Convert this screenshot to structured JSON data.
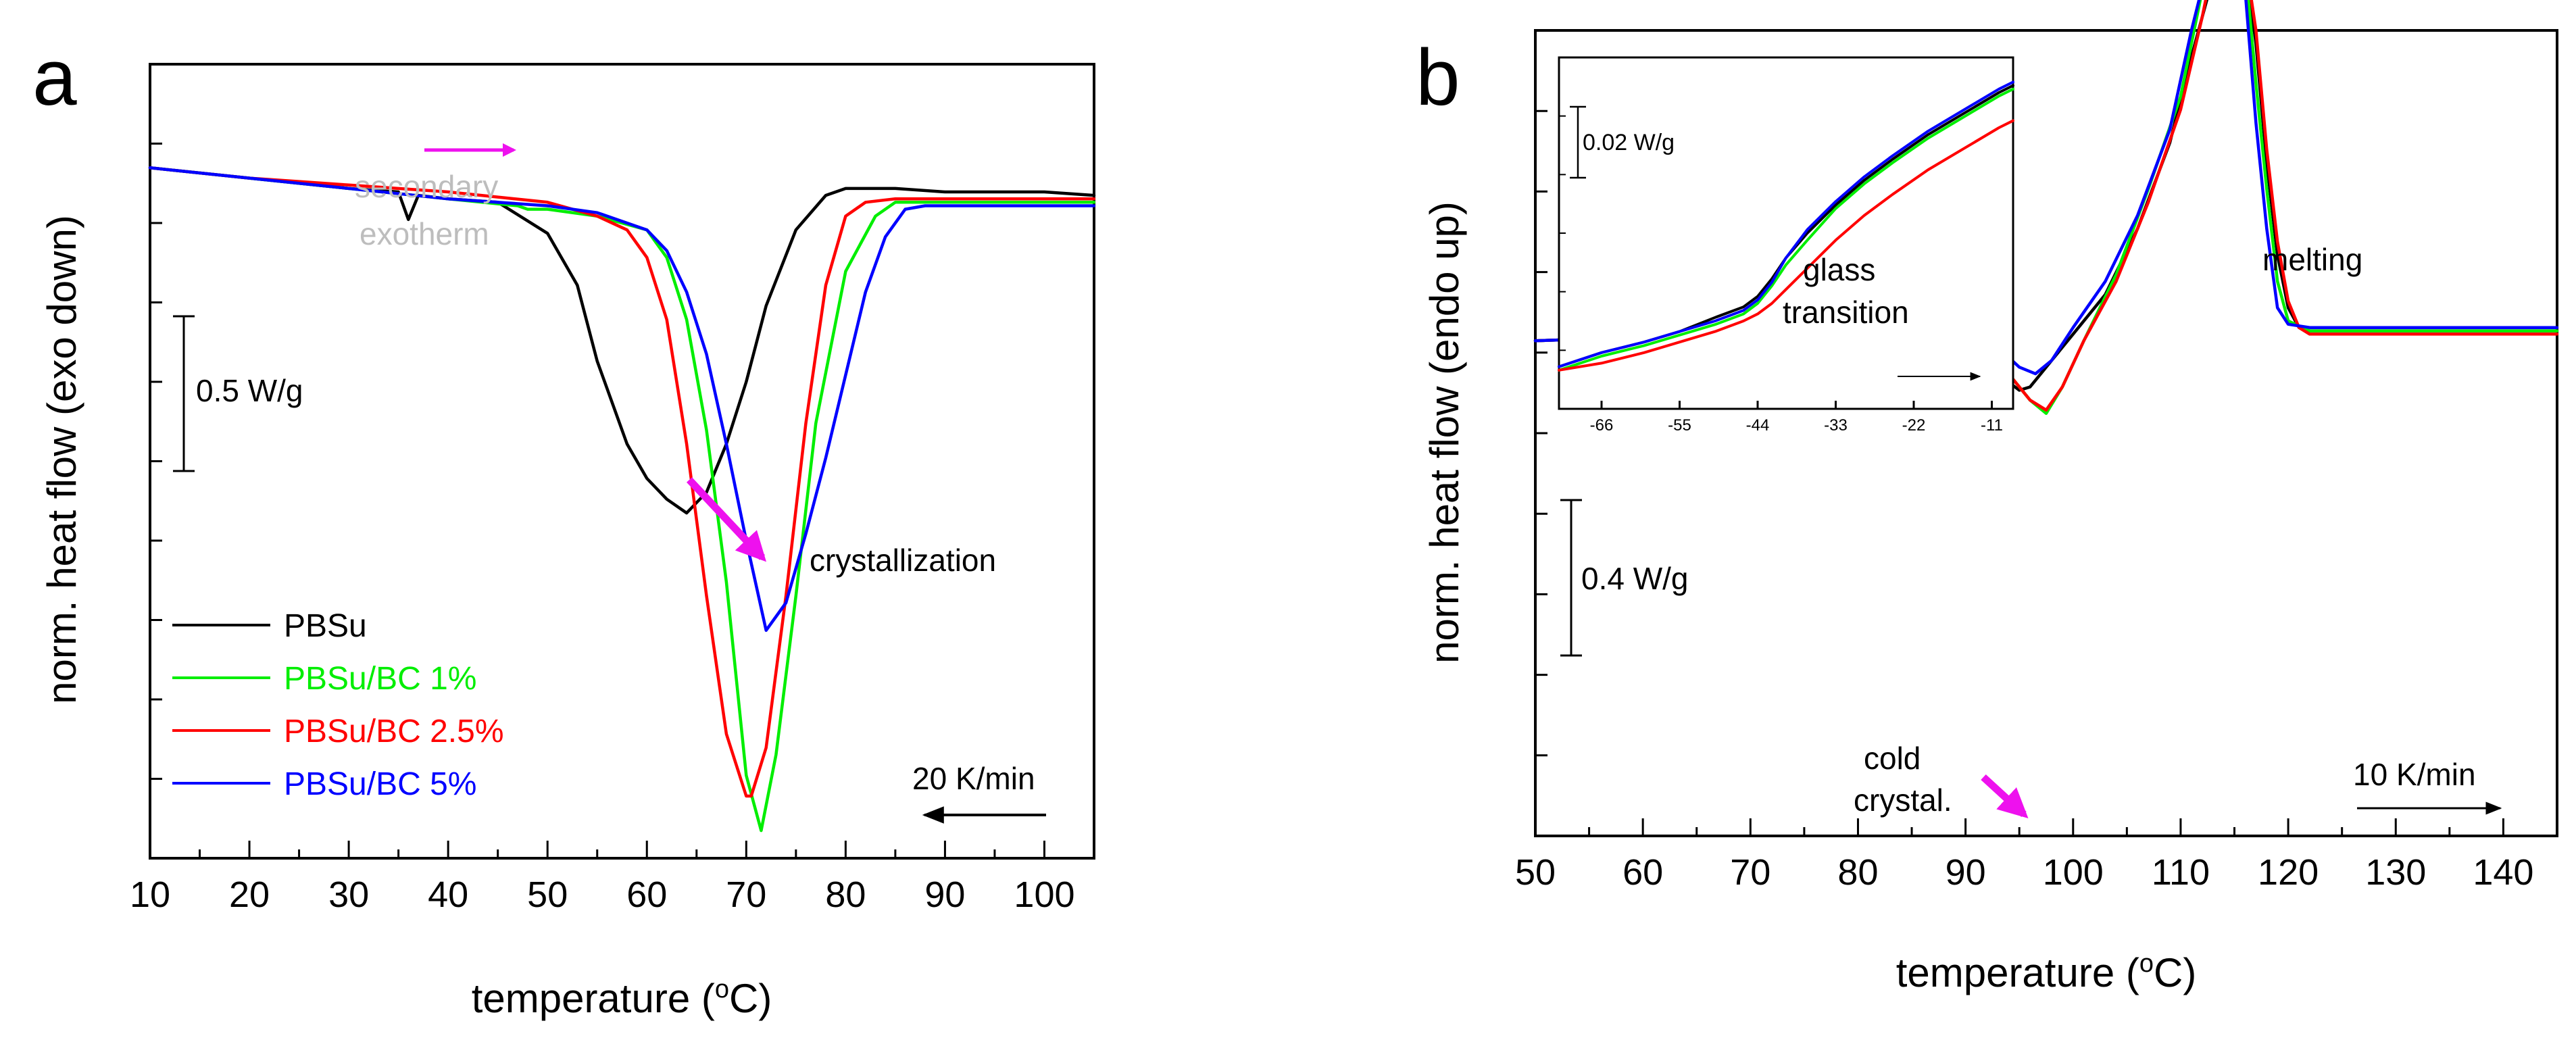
{
  "chart_data": [
    {
      "panel": "a",
      "type": "line",
      "xlabel": "temperature (°C)",
      "ylabel": "norm. heat flow (exo down)",
      "xlim": [
        10,
        105
      ],
      "ylim_relative_W_per_g": [
        -1.0,
        0.15
      ],
      "xticks": [
        10,
        20,
        30,
        40,
        50,
        60,
        70,
        80,
        90,
        100
      ],
      "legend_position": "bottom-left",
      "scale_bar": "0.5 W/g",
      "rate_label": "20 K/min",
      "rate_arrow_direction": "left",
      "annotations": [
        {
          "text": "crystallization",
          "at": [
            75,
            -0.6
          ]
        },
        {
          "text": "secondary",
          "at": [
            42,
            0.02
          ]
        },
        {
          "text": "exotherm",
          "at": [
            42,
            -0.04
          ]
        }
      ],
      "series": [
        {
          "name": "PBSu",
          "color": "#000000",
          "x": [
            10,
            20,
            30,
            35,
            36,
            37,
            40,
            45,
            50,
            53,
            55,
            58,
            60,
            62,
            64,
            66,
            68,
            70,
            72,
            75,
            78,
            80,
            82,
            85,
            90,
            95,
            100,
            105
          ],
          "y": [
            0.0,
            -0.015,
            -0.03,
            -0.035,
            -0.075,
            -0.04,
            -0.045,
            -0.05,
            -0.095,
            -0.17,
            -0.28,
            -0.4,
            -0.45,
            -0.48,
            -0.5,
            -0.47,
            -0.4,
            -0.31,
            -0.2,
            -0.09,
            -0.04,
            -0.03,
            -0.03,
            -0.03,
            -0.035,
            -0.035,
            -0.035,
            -0.04
          ]
        },
        {
          "name": "PBSu/BC 1%",
          "color": "#00ee00",
          "x": [
            10,
            20,
            30,
            40,
            47,
            48,
            50,
            55,
            60,
            62,
            64,
            66,
            68,
            70,
            71.5,
            73,
            75,
            77,
            80,
            83,
            85,
            90,
            95,
            100,
            105
          ],
          "y": [
            0.0,
            -0.015,
            -0.03,
            -0.045,
            -0.055,
            -0.06,
            -0.06,
            -0.07,
            -0.09,
            -0.13,
            -0.22,
            -0.38,
            -0.6,
            -0.88,
            -0.96,
            -0.85,
            -0.62,
            -0.37,
            -0.15,
            -0.07,
            -0.05,
            -0.05,
            -0.05,
            -0.05,
            -0.05
          ]
        },
        {
          "name": "PBSu/BC 2.5%",
          "color": "#ff0000",
          "x": [
            10,
            20,
            30,
            40,
            50,
            55,
            58,
            60,
            62,
            64,
            66,
            68,
            70,
            70.5,
            72,
            74,
            76,
            78,
            80,
            82,
            85,
            90,
            95,
            100,
            105
          ],
          "y": [
            0.0,
            -0.015,
            -0.025,
            -0.035,
            -0.05,
            -0.07,
            -0.09,
            -0.13,
            -0.22,
            -0.4,
            -0.62,
            -0.82,
            -0.91,
            -0.91,
            -0.84,
            -0.62,
            -0.37,
            -0.17,
            -0.07,
            -0.05,
            -0.045,
            -0.045,
            -0.045,
            -0.045,
            -0.045
          ]
        },
        {
          "name": "PBSu/BC 5%",
          "color": "#0000ff",
          "x": [
            10,
            20,
            30,
            40,
            50,
            55,
            60,
            62,
            64,
            66,
            68,
            70,
            72,
            74,
            76,
            78,
            80,
            82,
            84,
            86,
            88,
            90,
            95,
            100,
            105
          ],
          "y": [
            0.0,
            -0.015,
            -0.03,
            -0.045,
            -0.055,
            -0.065,
            -0.09,
            -0.12,
            -0.18,
            -0.27,
            -0.4,
            -0.54,
            -0.67,
            -0.63,
            -0.53,
            -0.42,
            -0.3,
            -0.18,
            -0.1,
            -0.06,
            -0.055,
            -0.055,
            -0.055,
            -0.055,
            -0.055
          ]
        }
      ]
    },
    {
      "panel": "b",
      "type": "line",
      "xlabel": "temperature (°C)",
      "ylabel": "norm. heat flow (endo up)",
      "xlim": [
        50,
        145
      ],
      "ylim_relative_W_per_g": [
        -0.9,
        0.32
      ],
      "xticks": [
        50,
        60,
        70,
        80,
        90,
        100,
        110,
        120,
        130,
        140
      ],
      "scale_bar": "0.4 W/g",
      "rate_label": "10 K/min",
      "rate_arrow_direction": "right",
      "annotations": [
        {
          "text": "melting",
          "at": [
            119,
            0.12
          ]
        },
        {
          "text": "cold",
          "at": [
            91,
            -0.47
          ]
        },
        {
          "text": "crystal.",
          "at": [
            91,
            -0.52
          ]
        }
      ],
      "series": [
        {
          "name": "PBSu",
          "color": "#000000",
          "x": [
            50,
            60,
            70,
            80,
            88,
            91,
            93,
            95,
            96,
            98,
            100,
            103,
            106,
            109,
            111,
            113,
            114,
            115,
            116,
            117,
            118,
            119,
            120,
            121,
            122,
            125,
            130,
            135,
            140,
            145
          ],
          "y": [
            -0.15,
            -0.145,
            -0.14,
            -0.14,
            -0.145,
            -0.17,
            -0.2,
            -0.225,
            -0.22,
            -0.18,
            -0.14,
            -0.08,
            0.02,
            0.15,
            0.28,
            0.4,
            0.44,
            0.46,
            0.42,
            0.3,
            0.12,
            -0.02,
            -0.1,
            -0.13,
            -0.135,
            -0.135,
            -0.135,
            -0.135,
            -0.135,
            -0.135
          ]
        },
        {
          "name": "PBSu/BC 1%",
          "color": "#00ee00",
          "x": [
            50,
            60,
            70,
            80,
            88,
            92,
            94,
            96,
            97.5,
            99,
            101,
            104,
            107,
            110,
            112,
            113,
            114,
            114.5,
            115,
            116,
            117,
            118,
            119,
            120,
            122,
            125,
            130,
            140,
            145
          ],
          "y": [
            -0.15,
            -0.145,
            -0.14,
            -0.135,
            -0.14,
            -0.16,
            -0.2,
            -0.24,
            -0.26,
            -0.22,
            -0.15,
            -0.05,
            0.08,
            0.22,
            0.38,
            0.48,
            0.56,
            0.6,
            0.56,
            0.42,
            0.24,
            0.08,
            -0.06,
            -0.12,
            -0.135,
            -0.135,
            -0.135,
            -0.135,
            -0.135
          ]
        },
        {
          "name": "PBSu/BC 2.5%",
          "color": "#ff0000",
          "x": [
            50,
            60,
            70,
            80,
            88,
            92,
            94,
            96,
            97.5,
            99,
            101,
            104,
            107,
            110,
            112,
            113,
            114,
            115,
            116,
            117,
            118,
            119,
            120,
            121,
            122,
            125,
            130,
            140,
            145
          ],
          "y": [
            -0.15,
            -0.145,
            -0.14,
            -0.135,
            -0.14,
            -0.16,
            -0.2,
            -0.24,
            -0.255,
            -0.22,
            -0.15,
            -0.06,
            0.06,
            0.2,
            0.34,
            0.42,
            0.47,
            0.48,
            0.43,
            0.32,
            0.14,
            0.0,
            -0.09,
            -0.13,
            -0.14,
            -0.14,
            -0.14,
            -0.14,
            -0.14
          ]
        },
        {
          "name": "PBSu/BC 5%",
          "color": "#0000ff",
          "x": [
            50,
            60,
            70,
            80,
            88,
            91,
            93,
            95,
            96.5,
            98,
            100,
            103,
            106,
            109,
            111,
            113,
            114,
            115,
            116,
            117,
            118,
            119,
            120,
            122,
            125,
            130,
            140,
            145
          ],
          "y": [
            -0.15,
            -0.145,
            -0.14,
            -0.13,
            -0.13,
            -0.135,
            -0.16,
            -0.19,
            -0.2,
            -0.18,
            -0.13,
            -0.06,
            0.04,
            0.17,
            0.32,
            0.45,
            0.52,
            0.5,
            0.38,
            0.18,
            0.02,
            -0.1,
            -0.125,
            -0.13,
            -0.13,
            -0.13,
            -0.13,
            -0.13
          ]
        }
      ],
      "inset": {
        "type": "line",
        "annotation": "glass transition",
        "scale_bar": "0.02 W/g",
        "xlim": [
          -72,
          -8
        ],
        "xticks": [
          -66,
          -55,
          -44,
          -33,
          -22,
          -11
        ],
        "ylim_relative_W_per_g": [
          0.0,
          0.1
        ],
        "series": [
          {
            "name": "PBSu",
            "color": "#000000",
            "x": [
              -72,
              -66,
              -60,
              -55,
              -50,
              -46,
              -44,
              -42,
              -40,
              -37,
              -33,
              -29,
              -25,
              -20,
              -15,
              -10,
              -8
            ],
            "y": [
              0.012,
              0.016,
              0.019,
              0.022,
              0.026,
              0.029,
              0.032,
              0.037,
              0.043,
              0.05,
              0.058,
              0.065,
              0.071,
              0.078,
              0.084,
              0.09,
              0.092
            ]
          },
          {
            "name": "PBSu/BC 1%",
            "color": "#00ee00",
            "x": [
              -72,
              -66,
              -60,
              -55,
              -50,
              -46,
              -44,
              -42,
              -40,
              -37,
              -33,
              -29,
              -25,
              -20,
              -15,
              -10,
              -8
            ],
            "y": [
              0.011,
              0.015,
              0.018,
              0.021,
              0.024,
              0.027,
              0.03,
              0.035,
              0.041,
              0.048,
              0.057,
              0.064,
              0.07,
              0.077,
              0.083,
              0.089,
              0.091
            ]
          },
          {
            "name": "PBSu/BC 2.5%",
            "color": "#ff0000",
            "x": [
              -72,
              -66,
              -60,
              -55,
              -50,
              -46,
              -44,
              -42,
              -40,
              -37,
              -33,
              -29,
              -25,
              -20,
              -15,
              -10,
              -8
            ],
            "y": [
              0.011,
              0.013,
              0.016,
              0.019,
              0.022,
              0.025,
              0.027,
              0.03,
              0.034,
              0.04,
              0.048,
              0.055,
              0.061,
              0.068,
              0.074,
              0.08,
              0.082
            ]
          },
          {
            "name": "PBSu/BC 5%",
            "color": "#0000ff",
            "x": [
              -72,
              -66,
              -60,
              -55,
              -50,
              -46,
              -44,
              -42,
              -40,
              -37,
              -33,
              -29,
              -25,
              -20,
              -15,
              -10,
              -8
            ],
            "y": [
              0.012,
              0.016,
              0.019,
              0.022,
              0.025,
              0.028,
              0.031,
              0.036,
              0.043,
              0.051,
              0.059,
              0.066,
              0.072,
              0.079,
              0.085,
              0.091,
              0.093
            ]
          }
        ]
      }
    }
  ],
  "labels": {
    "panel_a_letter": "a",
    "panel_b_letter": "b",
    "superscript_o": "o",
    "temperature_pre": "temperature (",
    "temperature_post": "C)",
    "ylabel_a": "norm. heat flow (exo down)",
    "ylabel_b": "norm. heat flow (endo up)",
    "scale_a": "0.5 W/g",
    "scale_b": "0.4 W/g",
    "scale_inset": "0.02 W/g",
    "crystallization": "crystallization",
    "secondary": "secondary",
    "exotherm": "exotherm",
    "melting": "melting",
    "cold": "cold",
    "crystal": "crystal.",
    "glass": "glass",
    "transition": "transition",
    "rate_a": "20 K/min",
    "rate_b": "10 K/min"
  },
  "colors": {
    "PBSu": "#000000",
    "PBSu_BC_1": "#00ee00",
    "PBSu_BC_2_5": "#ff0000",
    "PBSu_BC_5": "#0000ff",
    "annotation_arrow": "#ee11ee",
    "annotation_gray": "#bdbdbd"
  }
}
